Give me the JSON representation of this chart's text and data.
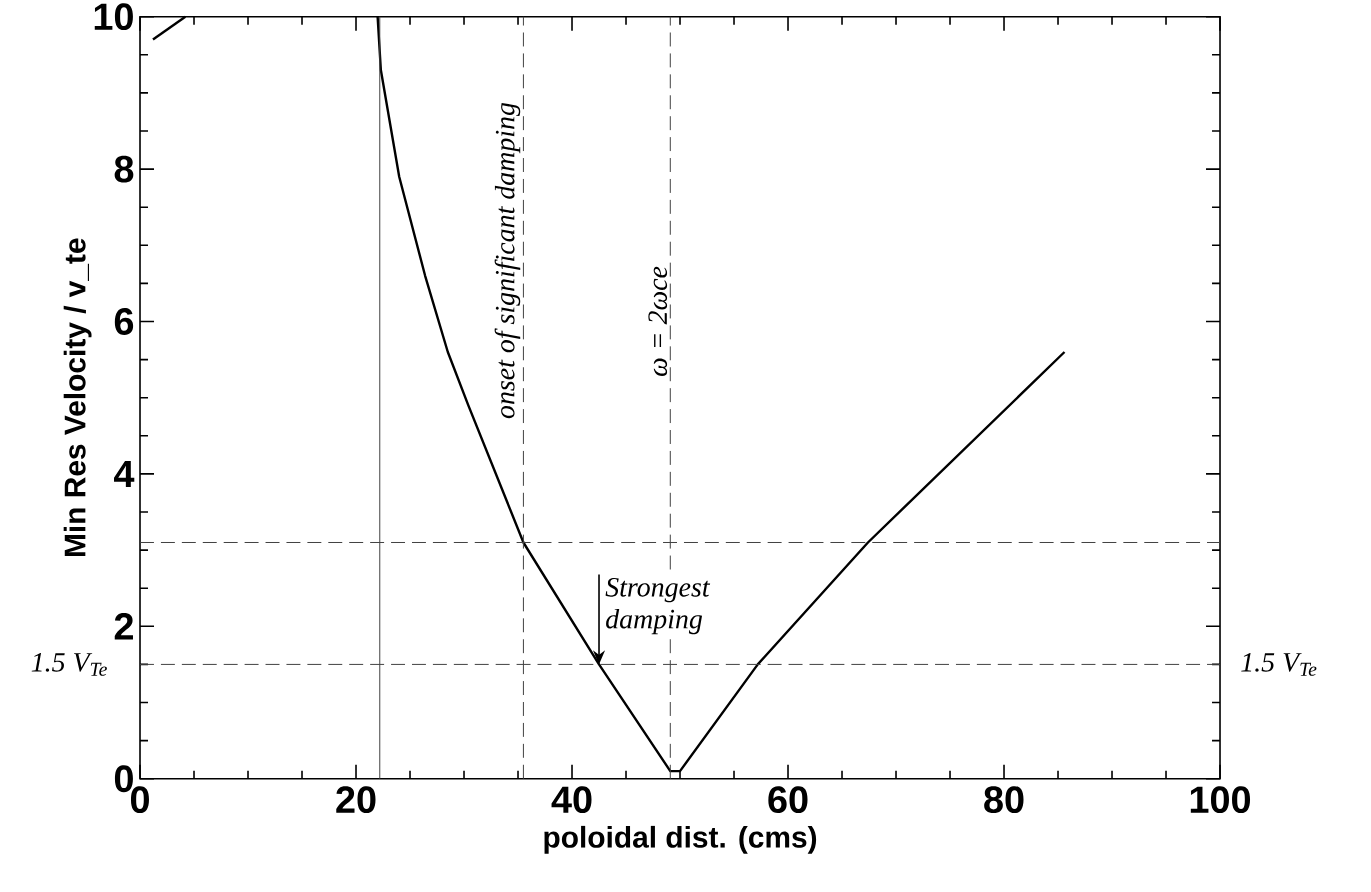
{
  "chart_data": {
    "type": "line",
    "xlabel": "poloidal dist. (cms)",
    "ylabel": "Min Res Velocity / v_te",
    "xlim": [
      0,
      100
    ],
    "xticks": [
      0,
      20,
      40,
      60,
      80,
      100
    ],
    "ylim": [
      0,
      10
    ],
    "yticks": [
      0,
      2,
      4,
      6,
      8,
      10
    ],
    "series": [
      {
        "color": "#000000",
        "x": [
          22.0,
          22.3,
          24.0,
          26.4,
          28.5,
          30.4,
          35.5,
          42.5,
          49.1,
          50.0,
          57.2,
          67.4,
          85.6
        ],
        "values": [
          10,
          9.3,
          7.9,
          6.6,
          5.6,
          4.9,
          3.1,
          1.5,
          0.1,
          0.1,
          1.5,
          3.1,
          5.6
        ]
      },
      {
        "color": "#000000",
        "x": [
          1.2,
          4.2
        ],
        "values": [
          9.7,
          10
        ]
      }
    ],
    "ref_lines": [
      {
        "axis": "x",
        "value": 22.2,
        "line_style": "solid"
      },
      {
        "axis": "x",
        "value": 35.5,
        "label": "onset of significant damping",
        "line_style": "dashed"
      },
      {
        "axis": "x",
        "value": 49.1,
        "line_style": "dashed"
      },
      {
        "axis": "y",
        "value": 3.1,
        "line_style": "dashed"
      },
      {
        "axis": "y",
        "value": 1.5,
        "label": "1.5 V$_{Te}$",
        "line_style": "dashed"
      }
    ],
    "annotations": [
      {
        "text": "Strongest damping",
        "x": 42.5,
        "y": 1.5
      },
      {
        "text": "ω = 2ωce",
        "x": 49.1,
        "y": 6
      },
      {
        "text": "1.5 V$_{Te}$",
        "x": 100,
        "y": 1.5
      }
    ]
  }
}
